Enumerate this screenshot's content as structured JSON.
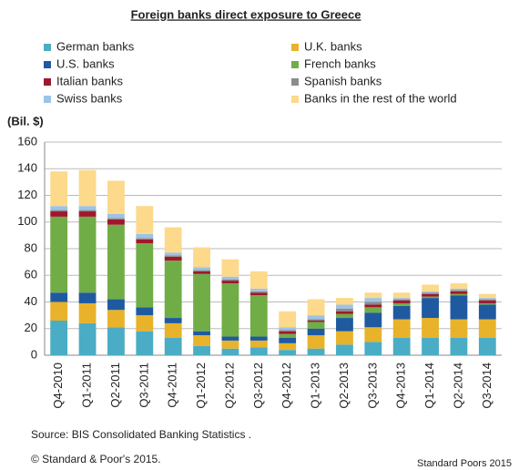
{
  "chart_data": {
    "type": "stacked_bar",
    "title": "Foreign banks direct exposure to Greece",
    "y_label": "(Bil. $)",
    "source": "Source: BIS Consolidated Banking Statistics .",
    "copyright": "© Standard & Poor's 2015.",
    "credit": "Standard Poors 2015",
    "categories": [
      "Q4-2010",
      "Q1-2011",
      "Q2-2011",
      "Q3-2011",
      "Q4-2011",
      "Q1-2012",
      "Q2-2012",
      "Q3-2012",
      "Q4-2012",
      "Q1-2013",
      "Q2-2013",
      "Q3-2013",
      "Q4-2013",
      "Q1-2014",
      "Q2-2014",
      "Q3-2014"
    ],
    "series": [
      {
        "name": "German banks",
        "color": "#4bacc6",
        "values": [
          26,
          24,
          21,
          18,
          13,
          7,
          5,
          6,
          4,
          5,
          8,
          10,
          13,
          13,
          13,
          13
        ]
      },
      {
        "name": "U.K. banks",
        "color": "#e8b22a",
        "values": [
          14,
          15,
          13,
          12,
          11,
          8,
          6,
          5,
          5,
          10,
          10,
          11,
          14,
          15,
          14,
          14
        ]
      },
      {
        "name": "U.S. banks",
        "color": "#1f5aa0",
        "values": [
          7,
          8,
          8,
          6,
          4,
          3,
          3,
          3,
          4,
          5,
          10,
          11,
          10,
          15,
          18,
          11
        ]
      },
      {
        "name": "French banks",
        "color": "#70ad47",
        "values": [
          57,
          57,
          56,
          48,
          43,
          43,
          40,
          31,
          3,
          5,
          3,
          4,
          2,
          1,
          1,
          1
        ]
      },
      {
        "name": "Italian banks",
        "color": "#a0172c",
        "values": [
          4,
          4,
          4,
          3,
          3,
          2,
          2,
          2,
          2,
          1,
          2,
          2,
          2,
          2,
          2,
          2
        ]
      },
      {
        "name": "Spanish banks",
        "color": "#8c8c8c",
        "values": [
          1,
          1,
          1,
          1,
          1,
          1,
          1,
          1,
          1,
          1,
          2,
          2,
          1,
          1,
          1,
          1
        ]
      },
      {
        "name": "Swiss banks",
        "color": "#9dc3e6",
        "values": [
          3,
          3,
          3,
          3,
          2,
          2,
          2,
          2,
          2,
          3,
          3,
          3,
          1,
          1,
          1,
          1
        ]
      },
      {
        "name": "Banks in the rest of the world",
        "color": "#fcd98b",
        "values": [
          26,
          27,
          25,
          21,
          19,
          15,
          13,
          13,
          12,
          12,
          5,
          4,
          4,
          5,
          4,
          3
        ]
      }
    ],
    "ylim": [
      0,
      160
    ],
    "yticks": [
      0,
      20,
      40,
      60,
      80,
      100,
      120,
      140,
      160
    ],
    "grid": true
  }
}
